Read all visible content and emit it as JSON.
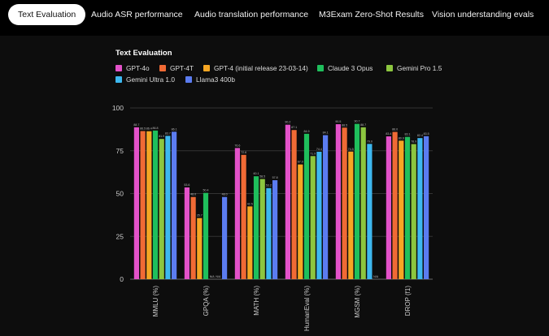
{
  "tabs": [
    {
      "label": "Text Evaluation",
      "active": true
    },
    {
      "label": "Audio ASR performance",
      "active": false
    },
    {
      "label": "Audio translation performance",
      "active": false
    },
    {
      "label": "M3Exam Zero-Shot Results",
      "active": false
    },
    {
      "label": "Vision understanding evals",
      "active": false
    }
  ],
  "chart_data": {
    "type": "bar",
    "title": "Text Evaluation",
    "categories": [
      "MMLU (%)",
      "GPQA (%)",
      "MATH (%)",
      "HumanEval (%)",
      "MGSM (%)",
      "DROP (f1)"
    ],
    "ylim": [
      0,
      100
    ],
    "yticks": [
      "0",
      "25",
      "50",
      "75",
      "100"
    ],
    "grid": true,
    "legend_position": "top-left",
    "series": [
      {
        "name": "GPT-4o",
        "color": "#e352c9",
        "values": [
          88.7,
          53.6,
          76.6,
          90.2,
          90.5,
          83.4
        ],
        "labels": [
          "88.7",
          "53.6",
          "76.6",
          "90.2",
          "90.5",
          "83.4"
        ]
      },
      {
        "name": "GPT-4T",
        "color": "#f06a35",
        "values": [
          86.5,
          48.0,
          72.6,
          87.1,
          88.5,
          86.0
        ],
        "labels": [
          "86.5",
          "48.0",
          "72.6",
          "87.1",
          "88.5",
          "86.0"
        ]
      },
      {
        "name": "GPT-4 (initial release 23-03-14)",
        "color": "#f5a623",
        "values": [
          86.4,
          35.7,
          42.5,
          67.0,
          74.5,
          80.9
        ],
        "labels": [
          "86.4",
          "35.7",
          "42.5",
          "67.0",
          "74.5",
          "80.9"
        ]
      },
      {
        "name": "Claude 3 Opus",
        "color": "#1fbf5c",
        "values": [
          86.8,
          50.4,
          60.1,
          84.9,
          90.7,
          83.1
        ],
        "labels": [
          "86.8",
          "50.4",
          "60.1",
          "84.9",
          "90.7",
          "83.1"
        ]
      },
      {
        "name": "Gemini Pro 1.5",
        "color": "#8cc63f",
        "values": [
          81.9,
          0,
          58.5,
          71.9,
          88.7,
          78.9
        ],
        "labels": [
          "81.9",
          "N/A",
          "58.5",
          "71.9",
          "88.7",
          "78.9"
        ]
      },
      {
        "name": "Gemini Ultra 1.0",
        "color": "#3db8f0",
        "values": [
          83.7,
          0,
          53.2,
          74.4,
          79.0,
          82.4
        ],
        "labels": [
          "83.7",
          "N/A",
          "53.2",
          "74.4",
          "79.0",
          "82.4"
        ]
      },
      {
        "name": "Llama3 400b",
        "color": "#5b7cf0",
        "values": [
          86.1,
          48.0,
          57.8,
          84.1,
          0,
          83.5
        ],
        "labels": [
          "86.1",
          "48.0",
          "57.8",
          "84.1",
          "N/A",
          "83.5"
        ]
      }
    ]
  }
}
